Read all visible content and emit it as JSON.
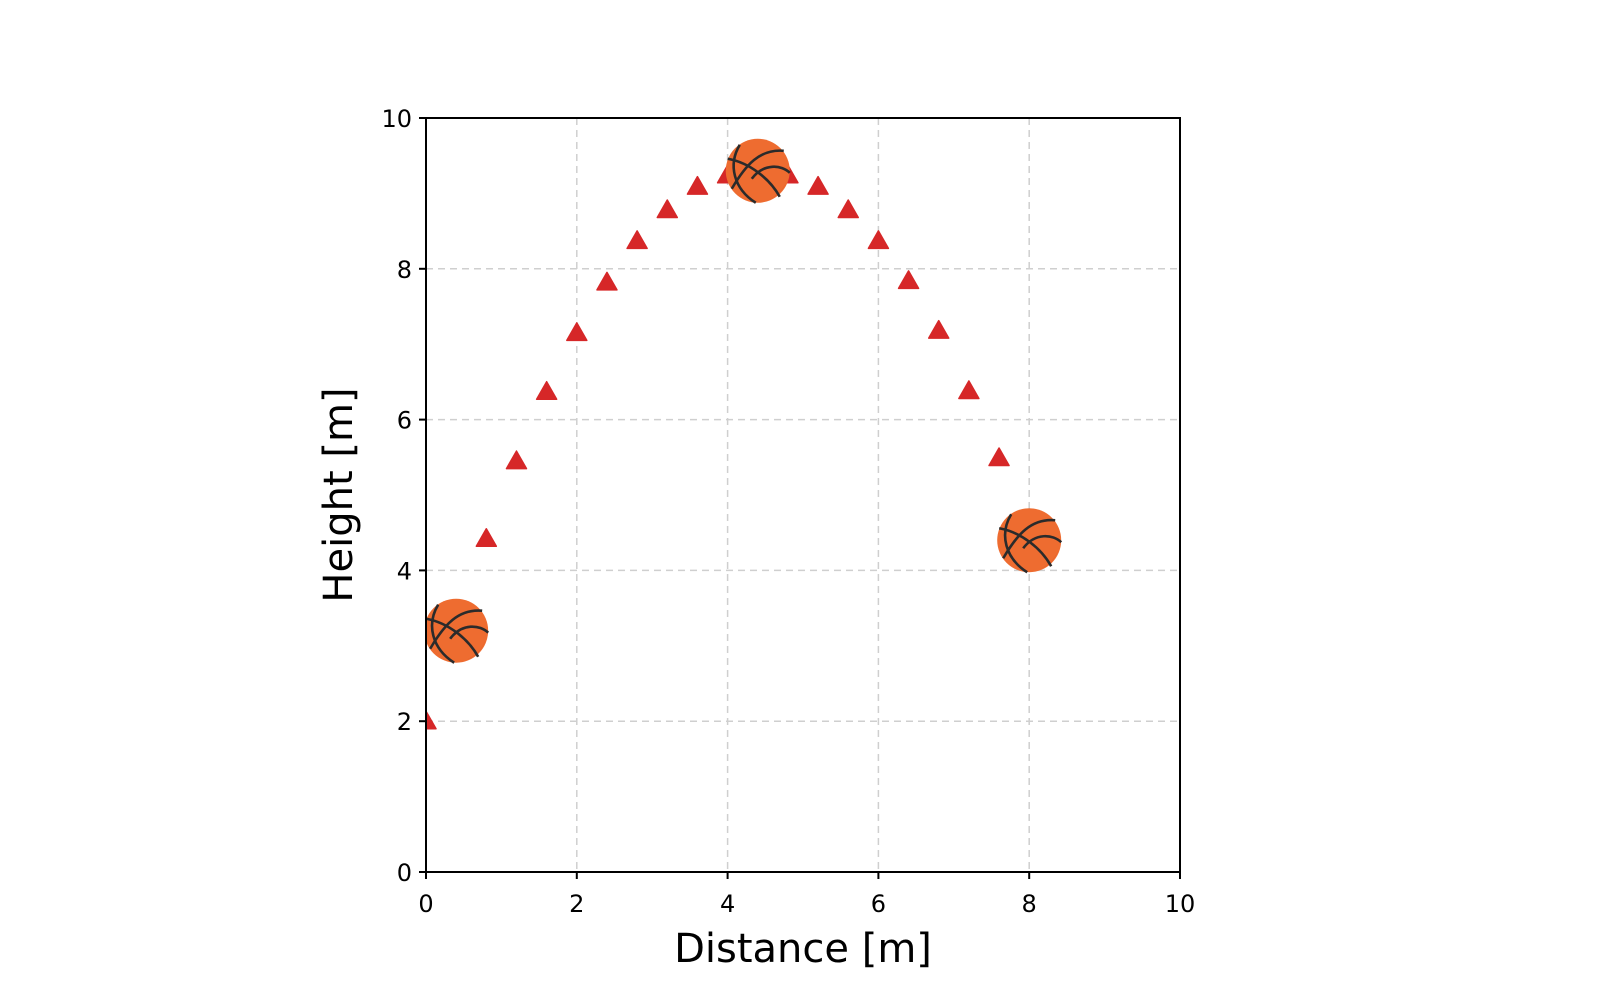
{
  "chart_data": {
    "type": "scatter",
    "title": "",
    "xlabel": "Distance [m]",
    "ylabel": "Height [m]",
    "xlim": [
      0,
      10
    ],
    "ylim": [
      0,
      10
    ],
    "xticks": [
      0,
      2,
      4,
      6,
      8,
      10
    ],
    "yticks": [
      0,
      2,
      4,
      6,
      8,
      10
    ],
    "grid": true,
    "grid_style": "dashed",
    "series": [
      {
        "name": "trajectory",
        "marker": "triangle-up",
        "color": "#d62728",
        "x": [
          0.0,
          0.4,
          0.8,
          1.2,
          1.6,
          2.0,
          2.4,
          2.8,
          3.2,
          3.6,
          4.0,
          4.4,
          4.8,
          5.2,
          5.6,
          6.0,
          6.4,
          6.8,
          7.2,
          7.6
        ],
        "y": [
          2.0,
          3.25,
          4.42,
          5.45,
          6.37,
          7.15,
          7.82,
          8.37,
          8.78,
          9.09,
          9.24,
          9.3,
          9.24,
          9.09,
          8.78,
          8.37,
          7.84,
          7.18,
          6.38,
          5.49
        ]
      },
      {
        "name": "basketball",
        "marker": "basketball-icon",
        "color": "#ee6c30",
        "x": [
          0.4,
          4.4,
          8.0
        ],
        "y": [
          3.2,
          9.3,
          4.4
        ]
      }
    ]
  },
  "axes": {
    "xlabel": "Distance [m]",
    "ylabel": "Height [m]"
  }
}
